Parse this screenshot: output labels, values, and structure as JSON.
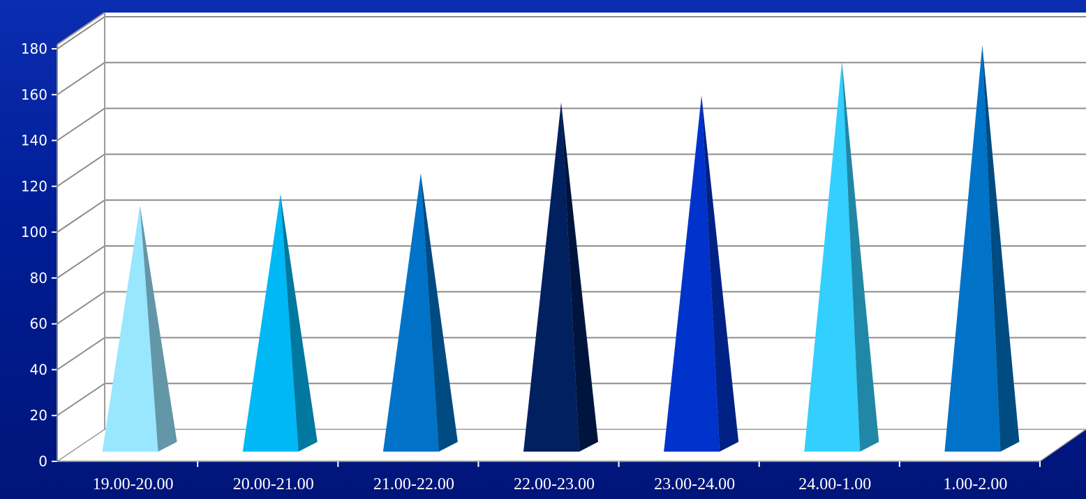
{
  "chart_data": {
    "type": "bar",
    "bar_shape": "pyramid-3d",
    "title": "",
    "xlabel": "",
    "ylabel": "",
    "categories": [
      "19.00-20.00",
      "20.00-21.00",
      "21.00-22.00",
      "22.00-23.00",
      "23.00-24.00",
      "24.00-1.00",
      "1.00-2.00"
    ],
    "values": [
      108,
      113,
      122,
      153,
      156,
      171,
      178
    ],
    "colors": [
      "#99e6ff",
      "#00b8f5",
      "#0073c8",
      "#002060",
      "#0033cc",
      "#33cfff",
      "#0073c8"
    ],
    "ylim": [
      0,
      180
    ],
    "yticks": [
      0,
      20,
      40,
      60,
      80,
      100,
      120,
      140,
      160,
      180
    ],
    "grid": true,
    "legend": "none",
    "plot_area_color": "#ffffff"
  }
}
